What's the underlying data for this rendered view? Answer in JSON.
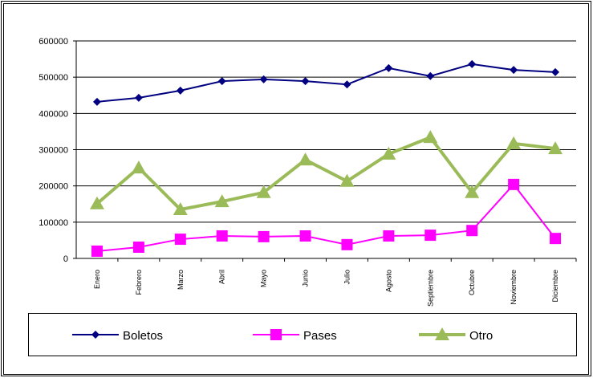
{
  "chart_data": {
    "type": "line",
    "categories": [
      "Enero",
      "Febrero",
      "Marzo",
      "Abril",
      "Mayo",
      "Junio",
      "Julio",
      "Agosto",
      "Septiembre",
      "Octubre",
      "Noviembre",
      "Diciembre"
    ],
    "series": [
      {
        "name": "Boletos",
        "color": "#000080",
        "marker": "diamond",
        "values": [
          432000,
          443000,
          463000,
          489000,
          494000,
          489000,
          480000,
          525000,
          503000,
          536000,
          520000,
          514000
        ]
      },
      {
        "name": "Pases",
        "color": "#ff00ff",
        "marker": "square",
        "values": [
          20000,
          31000,
          53000,
          62000,
          60000,
          62000,
          38000,
          62000,
          64000,
          77000,
          204000,
          55000
        ]
      },
      {
        "name": "Otro",
        "color": "#9bbb59",
        "marker": "triangle",
        "values": [
          151000,
          250000,
          135000,
          157000,
          182000,
          272000,
          213000,
          288000,
          334000,
          182000,
          317000,
          303000
        ]
      }
    ],
    "ylim": [
      0,
      600000
    ],
    "yticks": [
      0,
      100000,
      200000,
      300000,
      400000,
      500000,
      600000
    ],
    "grid": true
  }
}
